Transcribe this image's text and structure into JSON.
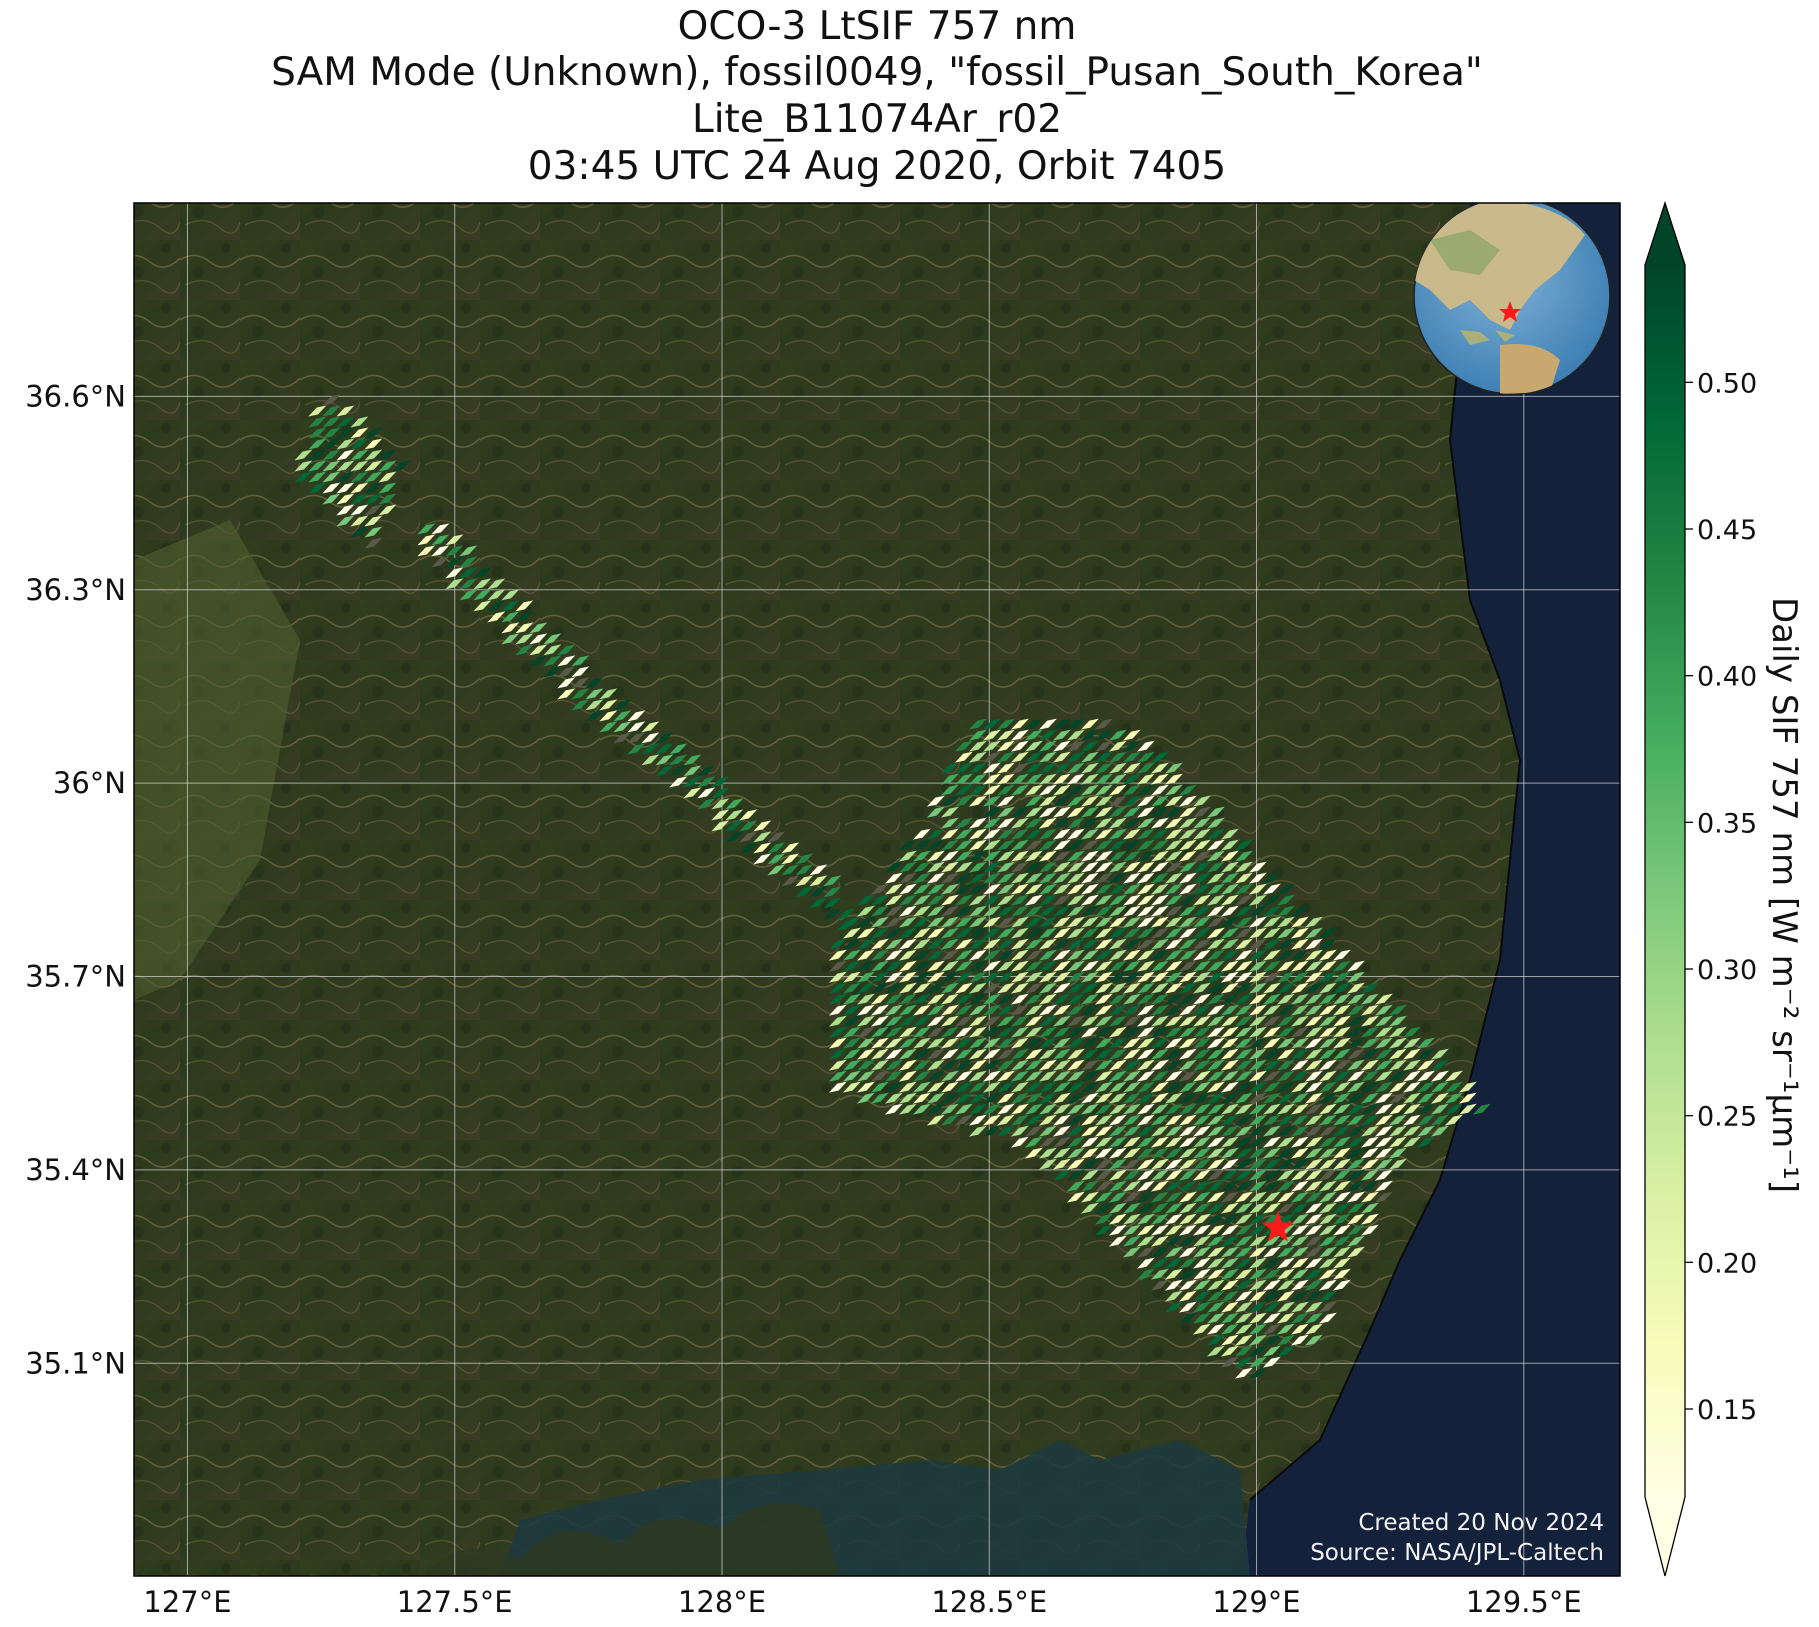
{
  "title": {
    "line1": "OCO-3 LtSIF 757 nm",
    "line2": "SAM Mode (Unknown), fossil0049, \"fossil_Pusan_South_Korea\"",
    "line3": "Lite_B11074Ar_r02",
    "line4": "03:45 UTC 24 Aug 2020, Orbit 7405"
  },
  "map": {
    "lon_range": [
      126.9,
      129.68
    ],
    "lat_range": [
      34.77,
      36.9
    ],
    "lon_ticks": [
      {
        "value": 127.0,
        "label": "127°E"
      },
      {
        "value": 127.5,
        "label": "127.5°E"
      },
      {
        "value": 128.0,
        "label": "128°E"
      },
      {
        "value": 128.5,
        "label": "128.5°E"
      },
      {
        "value": 129.0,
        "label": "129°E"
      },
      {
        "value": 129.5,
        "label": "129.5°E"
      }
    ],
    "lat_ticks": [
      {
        "value": 35.1,
        "label": "35.1°N"
      },
      {
        "value": 35.4,
        "label": "35.4°N"
      },
      {
        "value": 35.7,
        "label": "35.7°N"
      },
      {
        "value": 36.0,
        "label": "36°N"
      },
      {
        "value": 36.3,
        "label": "36.3°N"
      },
      {
        "value": 36.6,
        "label": "36.6°N"
      }
    ],
    "site_marker": {
      "lon": 129.04,
      "lat": 35.31,
      "color": "#ff1a1a",
      "icon": "star-icon"
    },
    "background": "satellite imagery (Korean peninsula, east coast)"
  },
  "swaths": [
    {
      "name": "segment-1",
      "corners_lonlat": [
        [
          127.25,
          36.62
        ],
        [
          127.4,
          36.5
        ],
        [
          127.35,
          36.36
        ],
        [
          127.2,
          36.48
        ]
      ]
    },
    {
      "name": "segment-2",
      "corners_lonlat": [
        [
          127.45,
          36.42
        ],
        [
          127.78,
          36.15
        ],
        [
          128.2,
          35.86
        ],
        [
          128.26,
          35.75
        ],
        [
          127.75,
          36.1
        ],
        [
          127.43,
          36.36
        ]
      ]
    },
    {
      "name": "segment-3",
      "corners_lonlat": [
        [
          128.47,
          36.1
        ],
        [
          128.77,
          36.09
        ],
        [
          129.43,
          35.5
        ],
        [
          129.27,
          35.42
        ],
        [
          129.12,
          35.14
        ],
        [
          128.97,
          35.07
        ],
        [
          128.56,
          35.44
        ],
        [
          128.2,
          35.52
        ],
        [
          128.2,
          35.74
        ],
        [
          128.35,
          35.92
        ],
        [
          128.67,
          36.0
        ],
        [
          128.37,
          35.94
        ]
      ]
    }
  ],
  "colorbar": {
    "label": "Daily SIF 757 nm [W m⁻² sr⁻¹µm⁻¹]",
    "min": 0.12,
    "max": 0.54,
    "ticks": [
      {
        "value": 0.15,
        "label": "0.15"
      },
      {
        "value": 0.2,
        "label": "0.20"
      },
      {
        "value": 0.25,
        "label": "0.25"
      },
      {
        "value": 0.3,
        "label": "0.30"
      },
      {
        "value": 0.35,
        "label": "0.35"
      },
      {
        "value": 0.4,
        "label": "0.40"
      },
      {
        "value": 0.45,
        "label": "0.45"
      },
      {
        "value": 0.5,
        "label": "0.50"
      }
    ],
    "colormap": "YlGn",
    "colors": [
      "#ffffe5",
      "#f7fcb9",
      "#d9f0a3",
      "#addd8e",
      "#78c679",
      "#41ab5d",
      "#238443",
      "#006837",
      "#004529"
    ],
    "extend": "both"
  },
  "credits": {
    "created": "Created 20 Nov 2024",
    "source": "Source: NASA/JPL-Caltech"
  },
  "inset": {
    "description": "globe locator",
    "marker_color": "#ff1a1a",
    "icon": "globe-icon"
  }
}
